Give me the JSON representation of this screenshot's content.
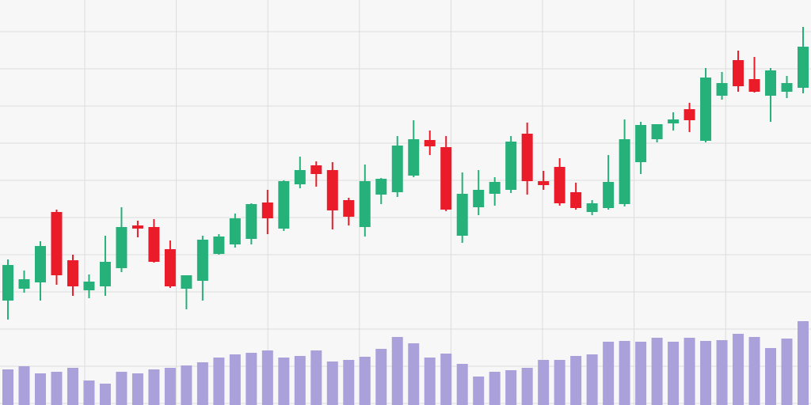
{
  "chart_data": {
    "type": "candlestick",
    "open": [
      132,
      147,
      155,
      244,
      183,
      145,
      150,
      173,
      227,
      225,
      197,
      147,
      157,
      191,
      203,
      210,
      256,
      223,
      279,
      303,
      297,
      259,
      225,
      266,
      269,
      290,
      335,
      326,
      214,
      250,
      267,
      272,
      343,
      283,
      301,
      269,
      244,
      249,
      254,
      307,
      336,
      356,
      374,
      334,
      391,
      436,
      412,
      391,
      396,
      401
    ],
    "high": [
      184,
      170,
      207,
      247,
      190,
      165,
      214,
      250,
      233,
      235,
      208,
      164,
      214,
      216,
      242,
      255,
      272,
      284,
      314,
      308,
      307,
      262,
      304,
      287,
      340,
      360,
      347,
      340,
      294,
      297,
      288,
      340,
      357,
      296,
      312,
      281,
      259,
      316,
      361,
      358,
      355,
      370,
      382,
      426,
      421,
      448,
      440,
      426,
      416,
      478
    ],
    "low": [
      108,
      142,
      132,
      152,
      138,
      135,
      138,
      168,
      212,
      180,
      148,
      121,
      132,
      190,
      199,
      203,
      216,
      220,
      274,
      276,
      222,
      227,
      213,
      254,
      263,
      288,
      316,
      245,
      205,
      240,
      252,
      268,
      266,
      272,
      252,
      247,
      240,
      247,
      251,
      292,
      332,
      347,
      345,
      332,
      386,
      396,
      395,
      358,
      388,
      394
    ],
    "close": [
      177,
      159,
      201,
      164,
      150,
      156,
      181,
      225,
      223,
      181,
      150,
      164,
      209,
      213,
      236,
      254,
      236,
      283,
      297,
      292,
      246,
      238,
      283,
      286,
      328,
      336,
      327,
      247,
      267,
      272,
      282,
      333,
      283,
      278,
      255,
      249,
      255,
      282,
      336,
      354,
      355,
      361,
      360,
      414,
      407,
      403,
      396,
      423,
      407,
      453
    ],
    "up_color": "#26b17b",
    "down_color": "#ea1c2a",
    "ylim": [
      0,
      512
    ],
    "grid": true,
    "volume": {
      "values": [
        45,
        49,
        40,
        42,
        47,
        31,
        27,
        42,
        40,
        45,
        47,
        50,
        54,
        60,
        64,
        66,
        69,
        60,
        62,
        69,
        55,
        57,
        61,
        71,
        86,
        78,
        60,
        65,
        52,
        36,
        42,
        44,
        47,
        57,
        57,
        62,
        64,
        80,
        81,
        80,
        85,
        80,
        85,
        81,
        82,
        90,
        86,
        72,
        84,
        106
      ],
      "color": "#aaa1db",
      "ylim": [
        0,
        512
      ]
    }
  }
}
